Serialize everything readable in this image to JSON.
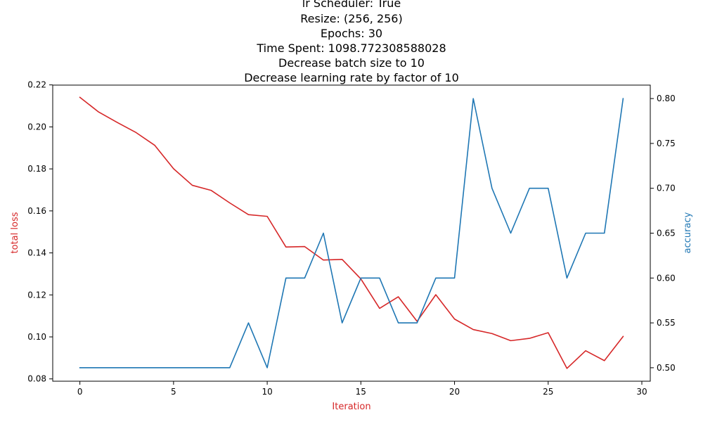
{
  "chart_data": {
    "type": "line",
    "title_lines": [
      "lr Scheduler: True",
      "Resize: (256, 256)",
      "Epochs: 30",
      "Time Spent: 1098.772308588028",
      "Decrease batch size to 10",
      "Decrease learning rate by factor of 10"
    ],
    "xlabel": "Iteration",
    "ylabel_left": "total loss",
    "ylabel_right": "accuracy",
    "xlim": [
      -1.45,
      30.45
    ],
    "ylim_left": [
      0.0789,
      0.2199
    ],
    "ylim_right": [
      0.485,
      0.815
    ],
    "x_ticks": [
      0,
      5,
      10,
      15,
      20,
      25,
      30
    ],
    "x_tick_labels": [
      "0",
      "5",
      "10",
      "15",
      "20",
      "25",
      "30"
    ],
    "y_left_ticks": [
      0.08,
      0.1,
      0.12,
      0.14,
      0.16,
      0.18,
      0.2,
      0.22
    ],
    "y_left_tick_labels": [
      "0.08",
      "0.10",
      "0.12",
      "0.14",
      "0.16",
      "0.18",
      "0.20",
      "0.22"
    ],
    "y_right_ticks": [
      0.5,
      0.55,
      0.6,
      0.65,
      0.7,
      0.75,
      0.8
    ],
    "y_right_tick_labels": [
      "0.50",
      "0.55",
      "0.60",
      "0.65",
      "0.70",
      "0.75",
      "0.80"
    ],
    "x": [
      0,
      1,
      2,
      3,
      4,
      5,
      6,
      7,
      8,
      9,
      10,
      11,
      12,
      13,
      14,
      15,
      16,
      17,
      18,
      19,
      20,
      21,
      22,
      23,
      24,
      25,
      26,
      27,
      28,
      29
    ],
    "series": [
      {
        "name": "total loss",
        "axis": "left",
        "color": "#d62728",
        "values": [
          0.2141,
          0.2071,
          0.2021,
          0.1973,
          0.1912,
          0.1801,
          0.1722,
          0.1698,
          0.1638,
          0.1582,
          0.1574,
          0.1428,
          0.143,
          0.1366,
          0.1369,
          0.1276,
          0.1136,
          0.1191,
          0.1074,
          0.1201,
          0.1085,
          0.1035,
          0.1016,
          0.0982,
          0.0993,
          0.102,
          0.085,
          0.0934,
          0.0887,
          0.1002
        ]
      },
      {
        "name": "accuracy",
        "axis": "right",
        "color": "#1f77b4",
        "values": [
          0.5,
          0.5,
          0.5,
          0.5,
          0.5,
          0.5,
          0.5,
          0.5,
          0.5,
          0.55,
          0.5,
          0.6,
          0.6,
          0.65,
          0.55,
          0.6,
          0.6,
          0.55,
          0.55,
          0.6,
          0.6,
          0.8,
          0.7,
          0.65,
          0.7,
          0.7,
          0.6,
          0.65,
          0.65,
          0.8
        ]
      }
    ],
    "grid": false,
    "legend": "none"
  }
}
